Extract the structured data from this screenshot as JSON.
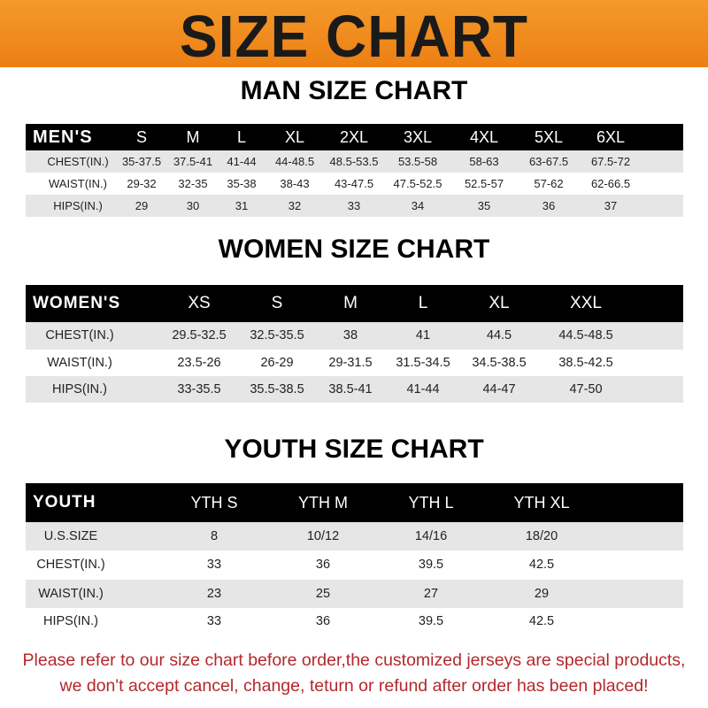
{
  "banner_title": "SIZE CHART",
  "men": {
    "title": "MAN SIZE CHART",
    "header": [
      "MEN'S",
      "S",
      "M",
      "L",
      "XL",
      "2XL",
      "3XL",
      "4XL",
      "5XL",
      "6XL"
    ],
    "rows": [
      [
        "CHEST(IN.)",
        "35-37.5",
        "37.5-41",
        "41-44",
        "44-48.5",
        "48.5-53.5",
        "53.5-58",
        "58-63",
        "63-67.5",
        "67.5-72"
      ],
      [
        "WAIST(IN.)",
        "29-32",
        "32-35",
        "35-38",
        "38-43",
        "43-47.5",
        "47.5-52.5",
        "52.5-57",
        "57-62",
        "62-66.5"
      ],
      [
        "HIPS(IN.)",
        "29",
        "30",
        "31",
        "32",
        "33",
        "34",
        "35",
        "36",
        "37"
      ]
    ]
  },
  "women": {
    "title": "WOMEN SIZE CHART",
    "header": [
      "WOMEN'S",
      "XS",
      "S",
      "M",
      "L",
      "XL",
      "XXL"
    ],
    "rows": [
      [
        "CHEST(IN.)",
        "29.5-32.5",
        "32.5-35.5",
        "38",
        "41",
        "44.5",
        "44.5-48.5"
      ],
      [
        "WAIST(IN.)",
        "23.5-26",
        "26-29",
        "29-31.5",
        "31.5-34.5",
        "34.5-38.5",
        "38.5-42.5"
      ],
      [
        "HIPS(IN.)",
        "33-35.5",
        "35.5-38.5",
        "38.5-41",
        "41-44",
        "44-47",
        "47-50"
      ]
    ]
  },
  "youth": {
    "title": "YOUTH SIZE CHART",
    "header": [
      "YOUTH",
      "YTH S",
      "YTH M",
      "YTH L",
      "YTH XL"
    ],
    "rows": [
      [
        "U.S.SIZE",
        "8",
        "10/12",
        "14/16",
        "18/20"
      ],
      [
        "CHEST(IN.)",
        "33",
        "36",
        "39.5",
        "42.5"
      ],
      [
        "WAIST(IN.)",
        "23",
        "25",
        "27",
        "29"
      ],
      [
        "HIPS(IN.)",
        "33",
        "36",
        "39.5",
        "42.5"
      ]
    ]
  },
  "footer": {
    "line1": "Please refer to our size chart before order,the customized jerseys are special products,",
    "line2": "we don't accept cancel, change, teturn or refund after order has been placed!"
  },
  "colors": {
    "banner": "#ee8519",
    "header_row": "#000000",
    "shaded_row": "#e6e6e6",
    "notice_text": "#b3282d"
  }
}
